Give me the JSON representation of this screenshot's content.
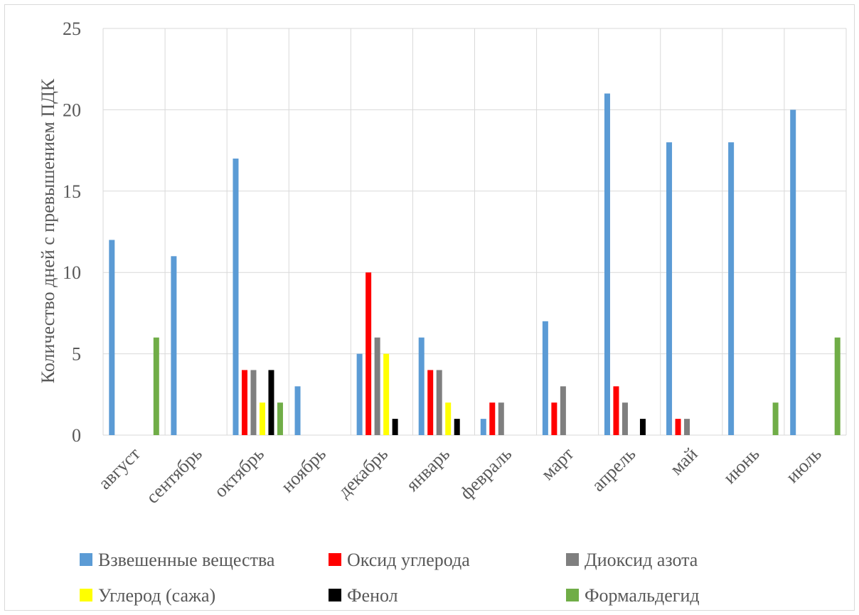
{
  "chart_data": {
    "type": "bar",
    "title": "",
    "xlabel": "",
    "ylabel": "Количество дней с превышением ПДК",
    "ylim": [
      0,
      25
    ],
    "yticks": [
      0,
      5,
      10,
      15,
      20,
      25
    ],
    "grid": true,
    "legend_position": "bottom",
    "categories": [
      "август",
      "сентябрь",
      "октябрь",
      "ноябрь",
      "декабрь",
      "январь",
      "февраль",
      "март",
      "апрель",
      "май",
      "июнь",
      "июль"
    ],
    "series": [
      {
        "name": "Взвешенные вещества",
        "color": "#5b9bd5",
        "values": [
          12,
          11,
          17,
          3,
          5,
          6,
          1,
          7,
          21,
          18,
          18,
          20
        ]
      },
      {
        "name": "Оксид углерода",
        "color": "#ff0000",
        "values": [
          0,
          0,
          4,
          0,
          10,
          4,
          2,
          2,
          3,
          1,
          0,
          0
        ]
      },
      {
        "name": "Диоксид азота",
        "color": "#7f7f7f",
        "values": [
          0,
          0,
          4,
          0,
          6,
          4,
          2,
          3,
          2,
          1,
          0,
          0
        ]
      },
      {
        "name": "Углерод (сажа)",
        "color": "#ffff00",
        "values": [
          0,
          0,
          2,
          0,
          5,
          2,
          0,
          0,
          0,
          0,
          0,
          0
        ]
      },
      {
        "name": "Фенол",
        "color": "#000000",
        "values": [
          0,
          0,
          4,
          0,
          1,
          1,
          0,
          0,
          1,
          0,
          0,
          0
        ]
      },
      {
        "name": "Формальдегид",
        "color": "#70ad47",
        "values": [
          6,
          0,
          2,
          0,
          0,
          0,
          0,
          0,
          0,
          0,
          2,
          6
        ]
      }
    ]
  }
}
